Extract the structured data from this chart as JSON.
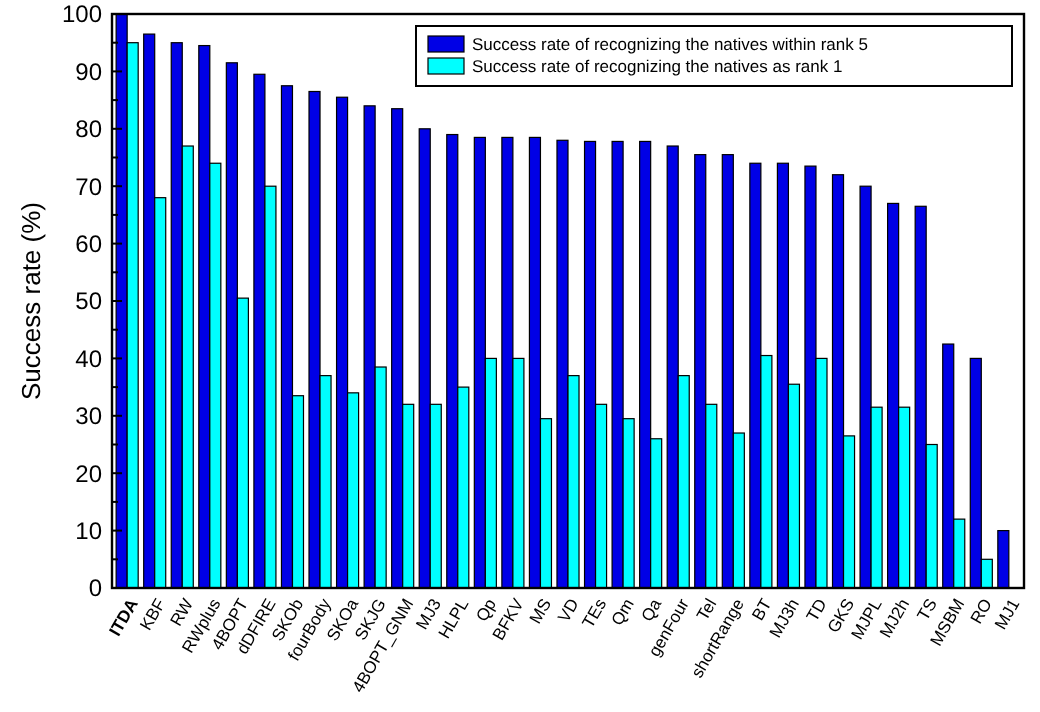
{
  "chart_data": {
    "type": "bar",
    "ylabel": "Success rate (%)",
    "categories": [
      "ITDA",
      "KBF",
      "RW",
      "RWplus",
      "4BOPT",
      "dDFIRE",
      "SKOb",
      "fourBody",
      "SKOa",
      "SKJG",
      "4BOPT_GNM",
      "MJ3",
      "HLPL",
      "Qp",
      "BFKV",
      "MS",
      "VD",
      "TEs",
      "Qm",
      "Qa",
      "genFour",
      "Tel",
      "shortRange",
      "BT",
      "MJ3h",
      "TD",
      "GKS",
      "MJPL",
      "MJ2h",
      "TS",
      "MSBM",
      "RO",
      "MJ1"
    ],
    "series": [
      {
        "name": "Success rate of recognizing the natives within rank 5",
        "color": "#0000e6",
        "values": [
          100,
          96.5,
          95,
          94.5,
          91.5,
          89.5,
          87.5,
          86.5,
          85.5,
          84,
          83.5,
          80,
          79,
          78.5,
          78.5,
          78.5,
          78,
          77.8,
          77.8,
          77.8,
          77,
          75.5,
          75.5,
          74,
          74,
          73.5,
          72,
          70,
          67,
          66.5,
          42.5,
          40,
          10
        ]
      },
      {
        "name": "Success rate of recognizing the natives as rank 1",
        "color": "#00ffff",
        "values": [
          95,
          68,
          77,
          74,
          50.5,
          70,
          33.5,
          37,
          34,
          38.5,
          32,
          32,
          35,
          40,
          40,
          29.5,
          37,
          32,
          29.5,
          26,
          37,
          32,
          27,
          40.5,
          35.5,
          40,
          26.5,
          31.5,
          31.5,
          25,
          12,
          5,
          0
        ]
      }
    ],
    "ylim": [
      0,
      100
    ],
    "yticks": [
      0,
      {
        "value": 5,
        "label": null
      },
      10,
      {
        "value": 15,
        "label": null
      },
      20,
      {
        "value": 25,
        "label": null
      },
      30,
      {
        "value": 35,
        "label": null
      },
      40,
      {
        "value": 45,
        "label": null
      },
      50,
      {
        "value": 55,
        "label": null
      },
      60,
      {
        "value": 65,
        "label": null
      },
      70,
      {
        "value": 75,
        "label": null
      },
      80,
      {
        "value": 85,
        "label": null
      },
      90,
      {
        "value": 95,
        "label": null
      },
      100
    ],
    "grid": false,
    "legend": "top right"
  }
}
